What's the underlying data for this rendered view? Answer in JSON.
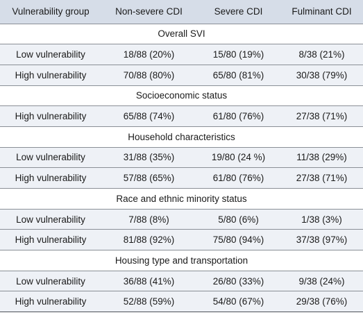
{
  "table": {
    "headers": [
      "Vulnerability group",
      "Non-severe CDI",
      "Severe CDI",
      "Fulminant CDI"
    ],
    "groups": [
      {
        "title": "Overall SVI",
        "rows": [
          [
            "Low vulnerability",
            "18/88 (20%)",
            "15/80 (19%)",
            "8/38 (21%)"
          ],
          [
            "High vulnerability",
            "70/88 (80%)",
            "65/80 (81%)",
            "30/38 (79%)"
          ]
        ]
      },
      {
        "title": "Socioeconomic status",
        "rows": [
          [
            "High vulnerability",
            "65/88 (74%)",
            "61/80 (76%)",
            "27/38 (71%)"
          ]
        ]
      },
      {
        "title": "Household characteristics",
        "rows": [
          [
            "Low vulnerability",
            "31/88 (35%)",
            "19/80 (24 %)",
            "11/38 (29%)"
          ],
          [
            "High vulnerability",
            "57/88 (65%)",
            "61/80 (76%)",
            "27/38 (71%)"
          ]
        ]
      },
      {
        "title": "Race and ethnic minority status",
        "rows": [
          [
            "Low vulnerability",
            "7/88 (8%)",
            "5/80 (6%)",
            "1/38 (3%)"
          ],
          [
            "High vulnerability",
            "81/88 (92%)",
            "75/80 (94%)",
            "37/38 (97%)"
          ]
        ]
      },
      {
        "title": "Housing type and transportation",
        "rows": [
          [
            "Low vulnerability",
            "36/88 (41%)",
            "26/80 (33%)",
            "9/38 (24%)"
          ],
          [
            "High vulnerability",
            "52/88 (59%)",
            "54/80 (67%)",
            "29/38 (76%)"
          ]
        ]
      }
    ]
  }
}
